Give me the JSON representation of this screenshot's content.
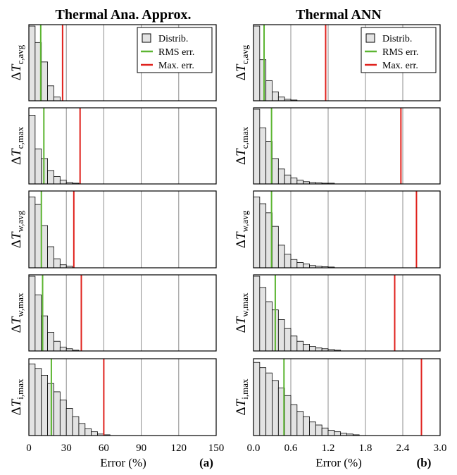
{
  "colors": {
    "bar_fill": "#e3e3e3",
    "bar_stroke": "#000000",
    "rms": "#5cb531",
    "max": "#e0221d",
    "grid": "#8c8c8c"
  },
  "legend": {
    "items": [
      "Distrib.",
      "RMS err.",
      "Max. err."
    ]
  },
  "chart_data": [
    {
      "type": "histogram",
      "column": "a",
      "title": "Thermal Ana. Approx.",
      "xlabel": "Error (%)",
      "panel_tag": "(a)",
      "xlim": [
        0,
        150
      ],
      "xticks": [
        "0",
        "30",
        "60",
        "90",
        "120",
        "150"
      ],
      "grid": "vertical at 30, 60, 90, 120",
      "legend_position": "top-right of first row",
      "bin_width": 5,
      "rows": [
        {
          "ylabel_main": "ΔT",
          "ylabel_sub": "c,avg",
          "rel_heights": [
            1.0,
            0.78,
            0.52,
            0.2,
            0.05
          ],
          "rms": 9.5,
          "max": 27
        },
        {
          "ylabel_main": "ΔT",
          "ylabel_sub": "c,max",
          "rel_heights": [
            0.92,
            0.47,
            0.34,
            0.18,
            0.1,
            0.05,
            0.02,
            0.01
          ],
          "rms": 12,
          "max": 41
        },
        {
          "ylabel_main": "ΔT",
          "ylabel_sub": "w,avg",
          "rel_heights": [
            0.94,
            0.84,
            0.56,
            0.28,
            0.12,
            0.04,
            0.02
          ],
          "rms": 10,
          "max": 36
        },
        {
          "ylabel_main": "ΔT",
          "ylabel_sub": "w,max",
          "rel_heights": [
            1.0,
            0.75,
            0.47,
            0.25,
            0.13,
            0.05,
            0.03,
            0.01
          ],
          "rms": 11,
          "max": 42
        },
        {
          "ylabel_main": "ΔT",
          "ylabel_sub": "i,max",
          "rel_heights": [
            0.95,
            0.89,
            0.8,
            0.69,
            0.58,
            0.47,
            0.36,
            0.25,
            0.16,
            0.09,
            0.05,
            0.02,
            0.01
          ],
          "rms": 18,
          "max": 60
        }
      ]
    },
    {
      "type": "histogram",
      "column": "b",
      "title": "Thermal ANN",
      "xlabel": "Error (%)",
      "panel_tag": "(b)",
      "xlim": [
        0,
        3.0
      ],
      "xticks": [
        "0.0",
        "0.6",
        "1.2",
        "1.8",
        "2.4",
        "3.0"
      ],
      "grid": "vertical at 0.6, 1.2, 1.8, 2.4",
      "legend_position": "top-right of first row",
      "bin_width": 0.1,
      "rows": [
        {
          "ylabel_main": "ΔT",
          "ylabel_sub": "c,avg",
          "rel_heights": [
            1.0,
            0.55,
            0.27,
            0.12,
            0.05,
            0.02,
            0.01
          ],
          "rms": 0.17,
          "max": 1.16
        },
        {
          "ylabel_main": "ΔT",
          "ylabel_sub": "c,max",
          "rel_heights": [
            1.0,
            0.75,
            0.57,
            0.34,
            0.2,
            0.12,
            0.08,
            0.05,
            0.03,
            0.02,
            0.015,
            0.01,
            0.01
          ],
          "rms": 0.29,
          "max": 2.37
        },
        {
          "ylabel_main": "ΔT",
          "ylabel_sub": "w,avg",
          "rel_heights": [
            0.94,
            0.85,
            0.73,
            0.55,
            0.3,
            0.18,
            0.11,
            0.07,
            0.05,
            0.03,
            0.02,
            0.015,
            0.01
          ],
          "rms": 0.29,
          "max": 2.62
        },
        {
          "ylabel_main": "ΔT",
          "ylabel_sub": "w,max",
          "rel_heights": [
            1.0,
            0.85,
            0.66,
            0.55,
            0.42,
            0.3,
            0.2,
            0.13,
            0.09,
            0.06,
            0.04,
            0.03,
            0.02,
            0.01
          ],
          "rms": 0.35,
          "max": 2.27
        },
        {
          "ylabel_main": "ΔT",
          "ylabel_sub": "i,max",
          "rel_heights": [
            0.97,
            0.9,
            0.83,
            0.73,
            0.63,
            0.53,
            0.41,
            0.32,
            0.25,
            0.18,
            0.14,
            0.1,
            0.07,
            0.05,
            0.03,
            0.02,
            0.01
          ],
          "rms": 0.49,
          "max": 2.7
        }
      ]
    }
  ]
}
